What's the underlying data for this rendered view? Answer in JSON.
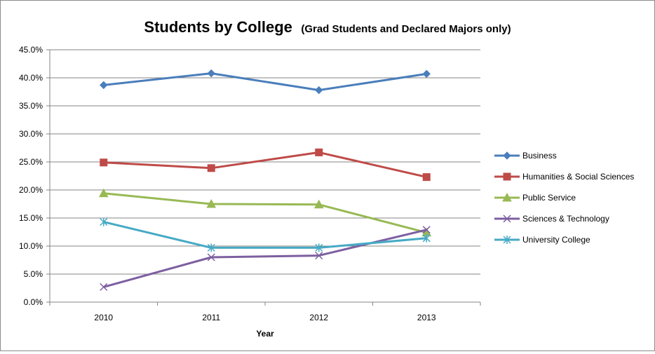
{
  "chart_data": {
    "type": "line",
    "title": "Students by College",
    "subtitle": "(Grad Students and Declared Majors only)",
    "xlabel": "Year",
    "ylabel": "",
    "categories": [
      "2010",
      "2011",
      "2012",
      "2013"
    ],
    "ylim": [
      0,
      45
    ],
    "yticks": [
      "0.0%",
      "5.0%",
      "10.0%",
      "15.0%",
      "20.0%",
      "25.0%",
      "30.0%",
      "35.0%",
      "40.0%",
      "45.0%"
    ],
    "grid": "horizontal",
    "legend": "right",
    "series": [
      {
        "name": "Business",
        "values": [
          38.7,
          40.8,
          37.8,
          40.7
        ],
        "color": "#4a7ebb",
        "marker": "diamond"
      },
      {
        "name": "Humanities & Social Sciences",
        "values": [
          24.9,
          23.9,
          26.7,
          22.3
        ],
        "color": "#be4b48",
        "marker": "square"
      },
      {
        "name": "Public Service",
        "values": [
          19.4,
          17.5,
          17.4,
          12.4
        ],
        "color": "#98b954",
        "marker": "triangle"
      },
      {
        "name": "Sciences & Technology",
        "values": [
          2.7,
          8.0,
          8.3,
          12.9
        ],
        "color": "#7d5fa0",
        "marker": "x"
      },
      {
        "name": "University College",
        "values": [
          14.3,
          9.7,
          9.7,
          11.4
        ],
        "color": "#46aac5",
        "marker": "star"
      }
    ]
  }
}
